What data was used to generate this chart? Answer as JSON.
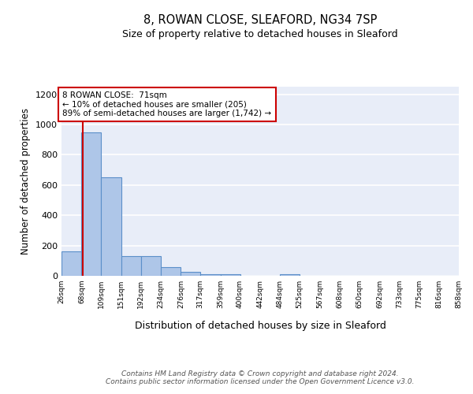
{
  "title_line1": "8, ROWAN CLOSE, SLEAFORD, NG34 7SP",
  "title_line2": "Size of property relative to detached houses in Sleaford",
  "xlabel": "Distribution of detached houses by size in Sleaford",
  "ylabel": "Number of detached properties",
  "bin_edges": [
    26,
    68,
    109,
    151,
    192,
    234,
    276,
    317,
    359,
    400,
    442,
    484,
    525,
    567,
    608,
    650,
    692,
    733,
    775,
    816,
    858
  ],
  "bar_heights": [
    160,
    950,
    650,
    130,
    130,
    55,
    25,
    10,
    10,
    0,
    0,
    10,
    0,
    0,
    0,
    0,
    0,
    0,
    0,
    0
  ],
  "bar_color": "#aec6e8",
  "bar_edge_color": "#5b8fc9",
  "bar_linewidth": 0.8,
  "vline_x": 71,
  "vline_color": "#cc0000",
  "annotation_text": "8 ROWAN CLOSE:  71sqm\n← 10% of detached houses are smaller (205)\n89% of semi-detached houses are larger (1,742) →",
  "annotation_box_color": "#ffffff",
  "annotation_box_edge": "#cc0000",
  "ylim": [
    0,
    1250
  ],
  "yticks": [
    0,
    200,
    400,
    600,
    800,
    1000,
    1200
  ],
  "background_color": "#e8edf8",
  "grid_color": "#ffffff",
  "footnote": "Contains HM Land Registry data © Crown copyright and database right 2024.\nContains public sector information licensed under the Open Government Licence v3.0.",
  "tick_labels": [
    "26sqm",
    "68sqm",
    "109sqm",
    "151sqm",
    "192sqm",
    "234sqm",
    "276sqm",
    "317sqm",
    "359sqm",
    "400sqm",
    "442sqm",
    "484sqm",
    "525sqm",
    "567sqm",
    "608sqm",
    "650sqm",
    "692sqm",
    "733sqm",
    "775sqm",
    "816sqm",
    "858sqm"
  ],
  "title1_fontsize": 10.5,
  "title2_fontsize": 9.0,
  "ylabel_fontsize": 8.5,
  "xlabel_fontsize": 9.0,
  "tick_fontsize": 6.5,
  "ytick_fontsize": 8.0,
  "footnote_fontsize": 6.5
}
